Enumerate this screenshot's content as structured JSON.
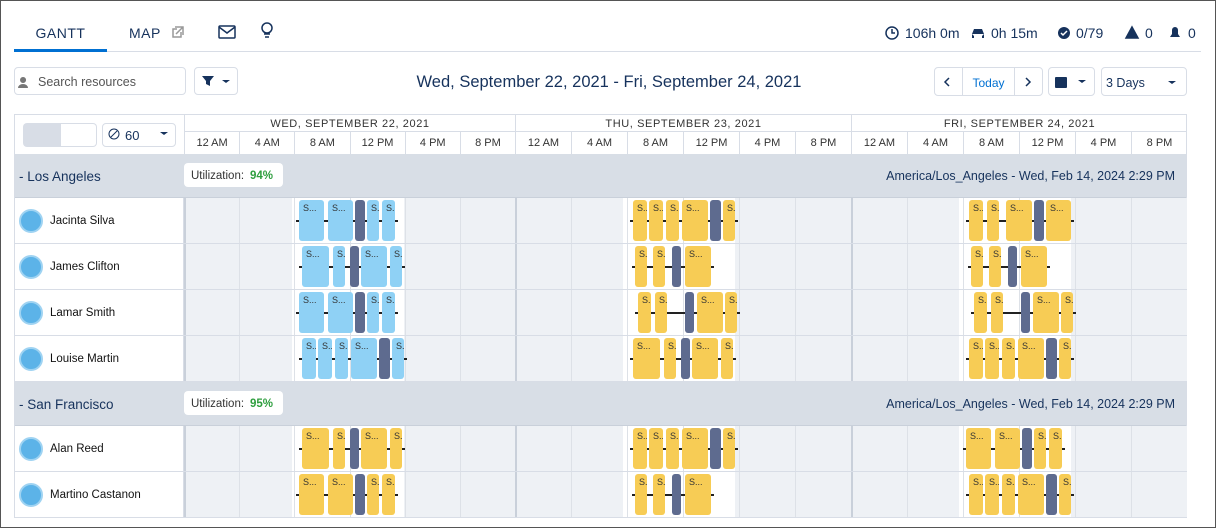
{
  "tabs": [
    "GANTT",
    "MAP"
  ],
  "stats": [
    "106h 0m",
    "0h 15m",
    "0/79",
    "0",
    "0"
  ],
  "search_placeholder": "Search resources",
  "date_range": "Wed, September 22, 2021 - Fri, September 24, 2021",
  "today": "Today",
  "view": "3 Days",
  "interval": "60",
  "days": [
    "WED, SEPTEMBER 22, 2021",
    "THU, SEPTEMBER 23, 2021",
    "FRI, SEPTEMBER 24, 2021"
  ],
  "hours": [
    "12 AM",
    "4 AM",
    "8 AM",
    "12 PM",
    "4 PM",
    "8 PM"
  ],
  "block_label": "S...",
  "groups": [
    {
      "name": "- Los Angeles",
      "utilization_label": "Utilization:",
      "utilization": "94%",
      "timezone": "America/Los_Angeles - Wed, Feb 14, 2024 2:29 PM",
      "resources": [
        "Jacinta Silva",
        "James Clifton",
        "Lamar Smith",
        "Louise Martin"
      ]
    },
    {
      "name": "- San Francisco",
      "utilization_label": "Utilization:",
      "utilization": "95%",
      "timezone": "America/Los_Angeles - Wed, Feb 14, 2024 2:29 PM",
      "resources": [
        "Alan Reed",
        "Martino Castanon"
      ]
    }
  ]
}
